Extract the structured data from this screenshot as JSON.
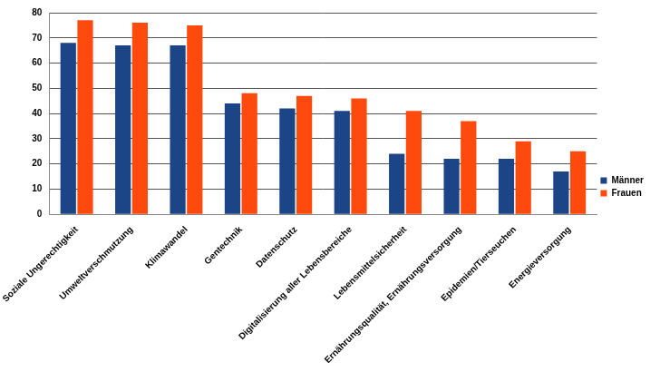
{
  "chart_data": {
    "type": "bar",
    "categories": [
      "Soziale Ungerechtigkeit",
      "Umweltverschmutzung",
      "Klimawandel",
      "Gentechnik",
      "Datenschutz",
      "Digitalisierung aller Lebensbereiche",
      "Lebensmittelsicherheit",
      "Ernährungsqualität, Ernährungsversorgung",
      "Epidemien/Tierseuchen",
      "Energieversorgung"
    ],
    "series": [
      {
        "name": "Männer",
        "color": "#1c4587",
        "values": [
          68,
          67,
          67,
          44,
          42,
          41,
          24,
          22,
          22,
          17
        ]
      },
      {
        "name": "Frauen",
        "color": "#ff4a0e",
        "values": [
          77,
          76,
          75,
          48,
          47,
          46,
          41,
          37,
          29,
          25
        ]
      }
    ],
    "ylim": [
      0,
      80
    ],
    "yticks": [
      0,
      10,
      20,
      30,
      40,
      50,
      60,
      70,
      80
    ],
    "grid": true,
    "legend": "right"
  }
}
